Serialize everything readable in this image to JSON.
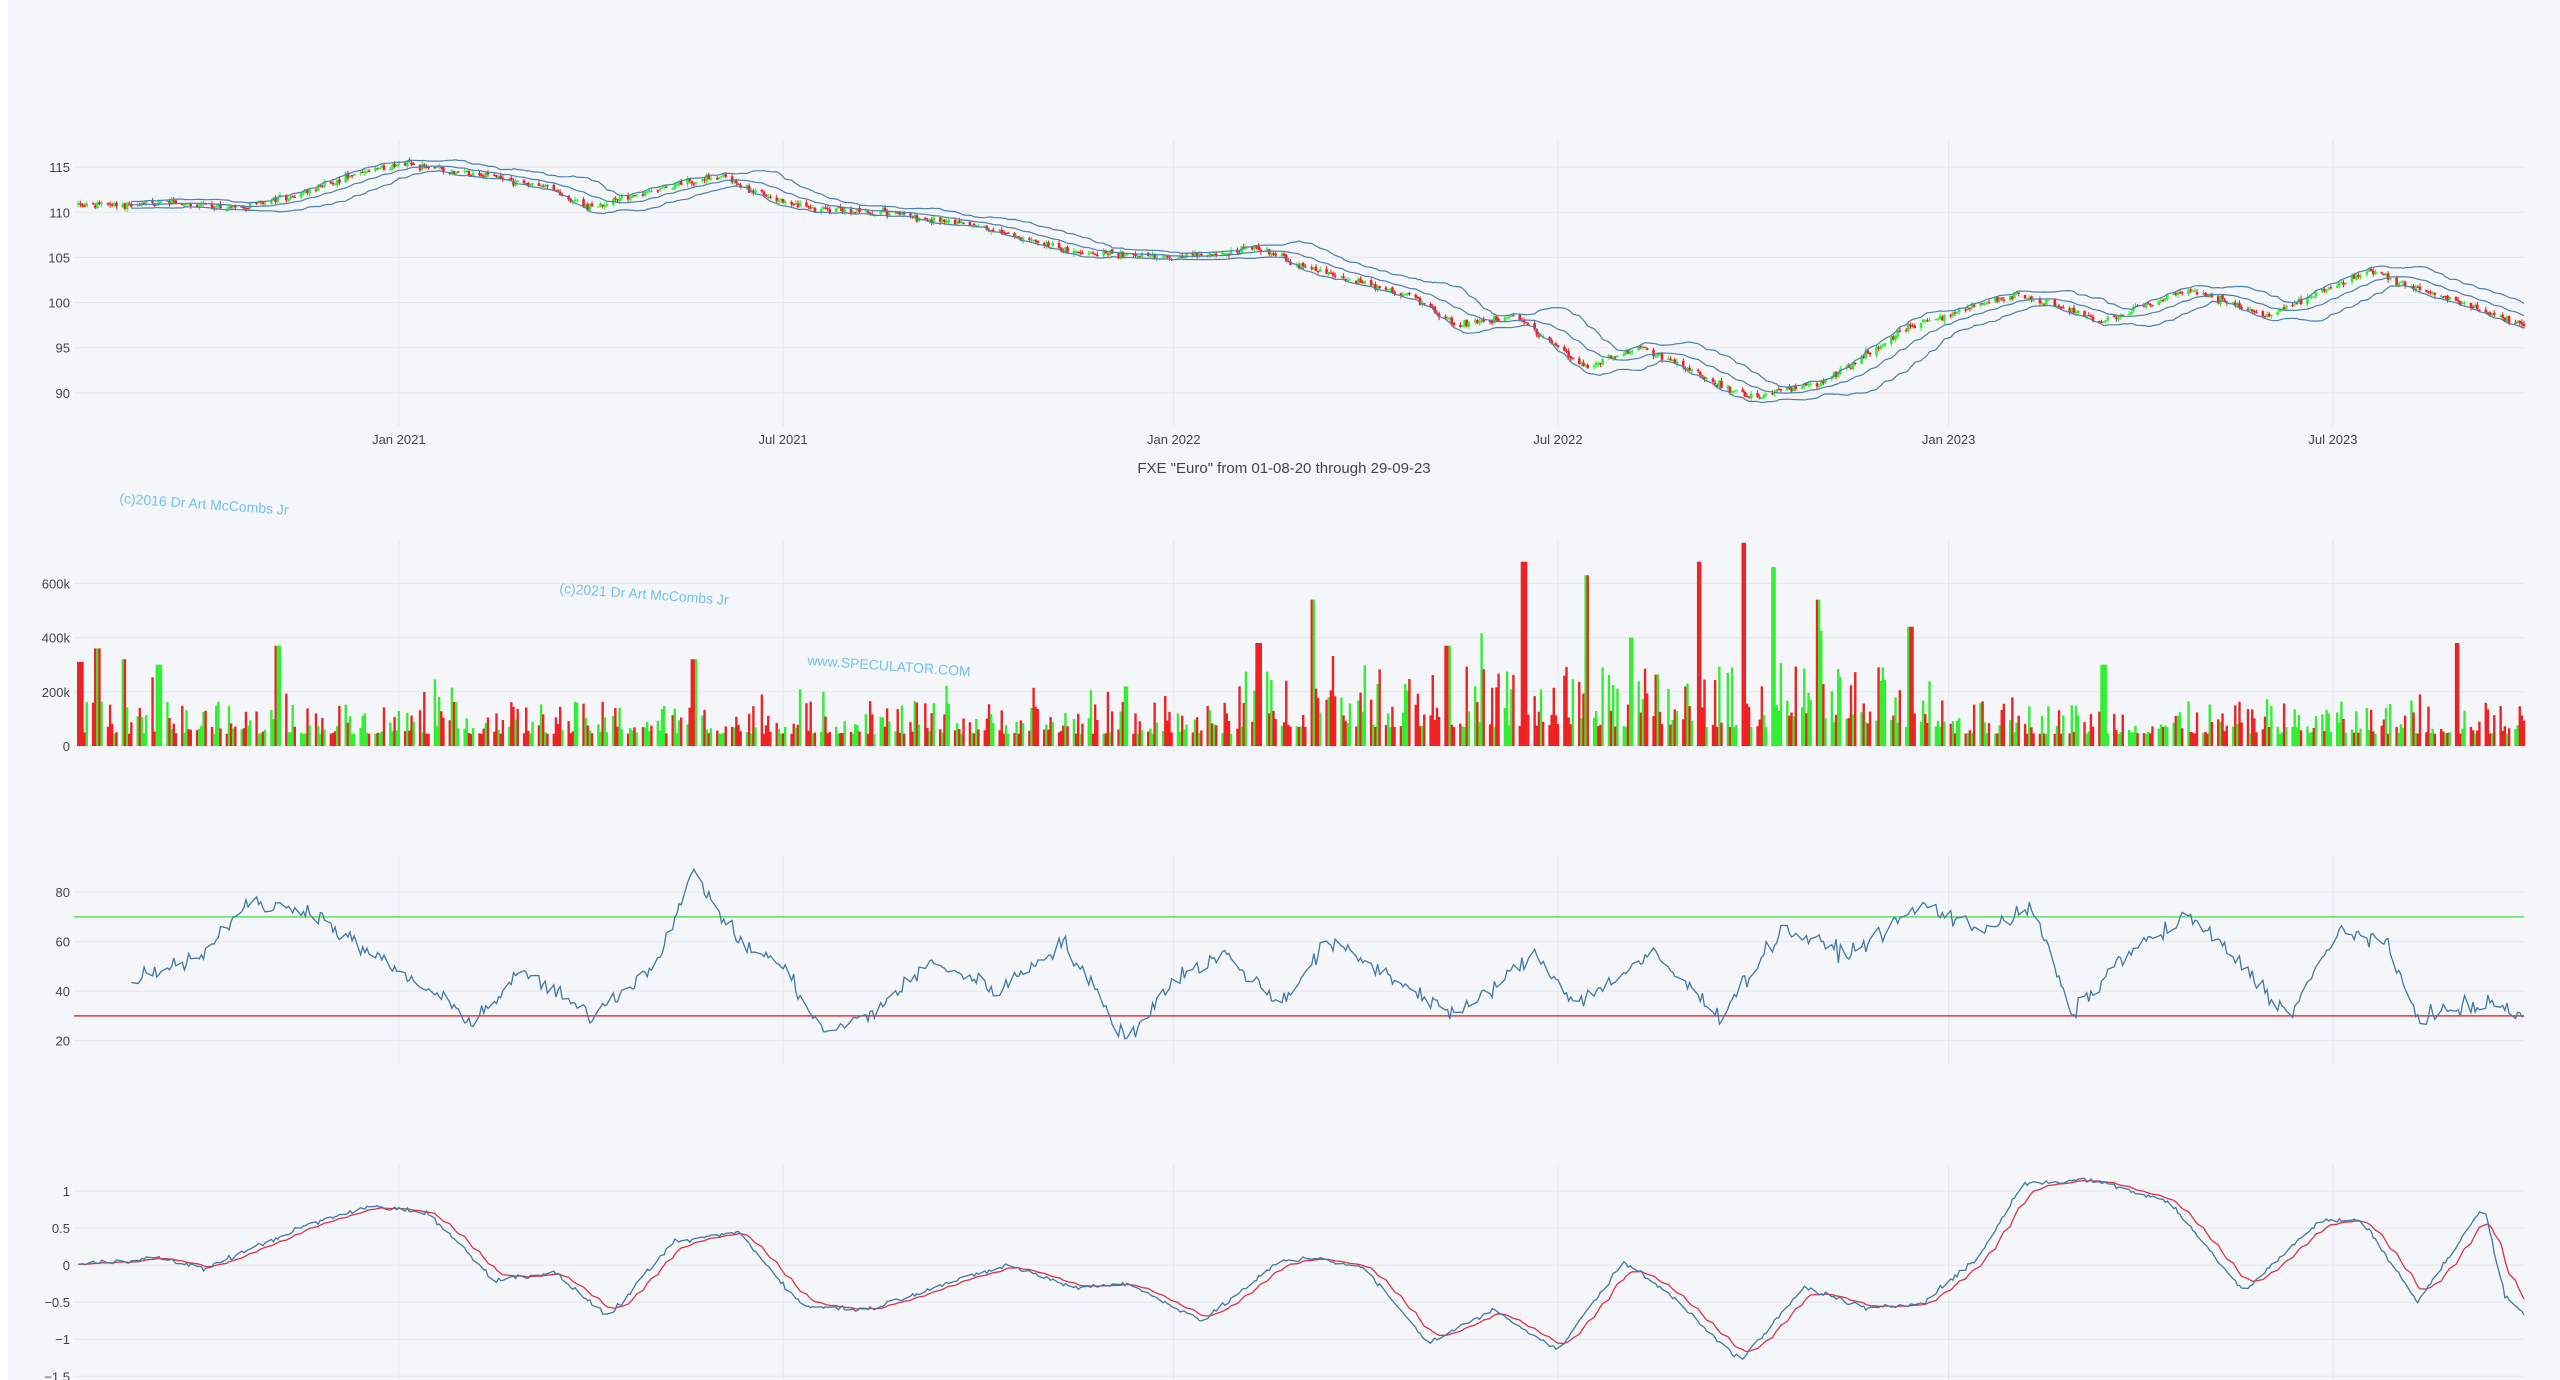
{
  "title": "FXE \"Euro\" from 01-08-20 through 29-09-23",
  "watermarks": [
    "(c)2016 Dr Art McCombs Jr",
    "(c)2021 Dr Art McCombs Jr",
    "www.SPECULATOR.COM"
  ],
  "x_ticks": [
    "Jan 2021",
    "Jul 2021",
    "Jan 2022",
    "Jul 2022",
    "Jan 2023",
    "Jul 2023"
  ],
  "colors": {
    "up": "#33ee33",
    "down": "#ee2222",
    "band": "#4b7faf",
    "rsi_line": "#3f78a8",
    "overbought": "#66dd66",
    "oversold": "#ee3333",
    "macd": "#3f78a8",
    "signal": "#dd3344",
    "grid": "#e2e6ee",
    "axis_text": "#444444"
  },
  "chart_data": [
    {
      "type": "candlestick",
      "name": "price",
      "x_range": [
        "2020-08-01",
        "2023-09-29"
      ],
      "ylim": [
        87,
        118
      ],
      "y_ticks": [
        "90",
        "95",
        "100",
        "105",
        "110",
        "115"
      ],
      "overlays": [
        "upper Bollinger band",
        "middle band",
        "lower Bollinger band"
      ],
      "keypoints": [
        [
          "2020-08-03",
          110.8
        ],
        [
          "2020-09-15",
          111.0
        ],
        [
          "2020-10-20",
          110.5
        ],
        [
          "2020-11-15",
          112.0
        ],
        [
          "2020-12-15",
          114.5
        ],
        [
          "2021-01-05",
          115.5
        ],
        [
          "2021-02-10",
          114.0
        ],
        [
          "2021-03-10",
          113.0
        ],
        [
          "2021-03-31",
          110.5
        ],
        [
          "2021-05-10",
          113.0
        ],
        [
          "2021-06-01",
          114.0
        ],
        [
          "2021-06-20",
          112.0
        ],
        [
          "2021-07-10",
          110.5
        ],
        [
          "2021-08-20",
          109.8
        ],
        [
          "2021-10-01",
          108.5
        ],
        [
          "2021-11-15",
          105.5
        ],
        [
          "2021-12-31",
          105.0
        ],
        [
          "2022-02-10",
          106.0
        ],
        [
          "2022-03-10",
          103.5
        ],
        [
          "2022-04-20",
          101.0
        ],
        [
          "2022-05-15",
          97.5
        ],
        [
          "2022-06-10",
          98.5
        ],
        [
          "2022-07-14",
          93.0
        ],
        [
          "2022-08-10",
          95.0
        ],
        [
          "2022-09-28",
          89.5
        ],
        [
          "2022-11-01",
          91.0
        ],
        [
          "2022-12-15",
          97.5
        ],
        [
          "2023-02-02",
          101.0
        ],
        [
          "2023-03-15",
          98.0
        ],
        [
          "2023-04-25",
          101.5
        ],
        [
          "2023-05-31",
          98.5
        ],
        [
          "2023-07-18",
          103.5
        ],
        [
          "2023-09-29",
          97.5
        ]
      ]
    },
    {
      "type": "bar",
      "name": "volume",
      "ylim": [
        0,
        760000
      ],
      "y_ticks": [
        "0",
        "200k",
        "400k",
        "600k"
      ],
      "spikes": [
        [
          "2020-08-04",
          310000
        ],
        [
          "2020-08-12",
          360000
        ],
        [
          "2020-08-24",
          320000
        ],
        [
          "2020-09-10",
          300000
        ],
        [
          "2020-11-05",
          370000
        ],
        [
          "2021-05-20",
          320000
        ],
        [
          "2021-12-10",
          220000
        ],
        [
          "2022-02-10",
          380000
        ],
        [
          "2022-03-07",
          540000
        ],
        [
          "2022-05-10",
          370000
        ],
        [
          "2022-06-15",
          680000
        ],
        [
          "2022-07-15",
          630000
        ],
        [
          "2022-08-05",
          400000
        ],
        [
          "2022-09-05",
          680000
        ],
        [
          "2022-09-26",
          750000
        ],
        [
          "2022-10-10",
          660000
        ],
        [
          "2022-10-31",
          540000
        ],
        [
          "2022-12-14",
          440000
        ],
        [
          "2023-03-15",
          300000
        ],
        [
          "2023-08-28",
          380000
        ]
      ]
    },
    {
      "type": "line",
      "name": "RSI",
      "ylim": [
        13,
        95
      ],
      "y_ticks": [
        "20",
        "40",
        "60",
        "80"
      ],
      "levels": {
        "overbought": 70,
        "oversold": 30
      },
      "keypoints": [
        [
          "2020-08-28",
          45
        ],
        [
          "2020-10-01",
          55
        ],
        [
          "2020-10-20",
          75
        ],
        [
          "2020-11-20",
          73
        ],
        [
          "2020-12-10",
          60
        ],
        [
          "2021-01-15",
          40
        ],
        [
          "2021-02-05",
          28
        ],
        [
          "2021-03-01",
          48
        ],
        [
          "2021-04-01",
          30
        ],
        [
          "2021-05-01",
          50
        ],
        [
          "2021-05-20",
          88
        ],
        [
          "2021-06-10",
          60
        ],
        [
          "2021-07-01",
          50
        ],
        [
          "2021-07-20",
          23
        ],
        [
          "2021-08-10",
          30
        ],
        [
          "2021-09-10",
          52
        ],
        [
          "2021-10-10",
          40
        ],
        [
          "2021-11-10",
          60
        ],
        [
          "2021-12-10",
          20
        ],
        [
          "2022-01-01",
          45
        ],
        [
          "2022-01-25",
          55
        ],
        [
          "2022-02-20",
          35
        ],
        [
          "2022-03-15",
          60
        ],
        [
          "2022-04-15",
          45
        ],
        [
          "2022-05-15",
          30
        ],
        [
          "2022-06-20",
          55
        ],
        [
          "2022-07-10",
          35
        ],
        [
          "2022-08-15",
          55
        ],
        [
          "2022-09-15",
          30
        ],
        [
          "2022-10-15",
          65
        ],
        [
          "2022-11-15",
          55
        ],
        [
          "2022-12-20",
          75
        ],
        [
          "2023-01-15",
          65
        ],
        [
          "2023-02-10",
          73
        ],
        [
          "2023-02-28",
          30
        ],
        [
          "2023-03-25",
          55
        ],
        [
          "2023-04-25",
          70
        ],
        [
          "2023-05-20",
          50
        ],
        [
          "2023-06-10",
          30
        ],
        [
          "2023-07-05",
          65
        ],
        [
          "2023-07-25",
          60
        ],
        [
          "2023-08-10",
          30
        ],
        [
          "2023-09-15",
          35
        ],
        [
          "2023-09-29",
          30
        ]
      ]
    },
    {
      "type": "line",
      "name": "MACD",
      "ylim": [
        -1.55,
        1.35
      ],
      "y_ticks": [
        "−1.5",
        "−1",
        "−0.5",
        "0",
        "0.5",
        "1"
      ],
      "series": [
        "MACD",
        "signal"
      ],
      "keypoints": [
        [
          "2020-08-01",
          0.0
        ],
        [
          "2020-09-10",
          0.1
        ],
        [
          "2020-10-01",
          -0.05
        ],
        [
          "2020-11-20",
          0.55
        ],
        [
          "2020-12-20",
          0.8
        ],
        [
          "2021-01-15",
          0.7
        ],
        [
          "2021-02-15",
          -0.2
        ],
        [
          "2021-03-15",
          -0.1
        ],
        [
          "2021-04-10",
          -0.7
        ],
        [
          "2021-05-10",
          0.3
        ],
        [
          "2021-06-10",
          0.45
        ],
        [
          "2021-07-10",
          -0.55
        ],
        [
          "2021-08-10",
          -0.6
        ],
        [
          "2021-09-10",
          -0.3
        ],
        [
          "2021-10-15",
          0.0
        ],
        [
          "2021-11-15",
          -0.3
        ],
        [
          "2021-12-10",
          -0.25
        ],
        [
          "2022-01-15",
          -0.75
        ],
        [
          "2022-02-20",
          0.05
        ],
        [
          "2022-03-10",
          0.1
        ],
        [
          "2022-04-01",
          -0.05
        ],
        [
          "2022-05-01",
          -1.05
        ],
        [
          "2022-06-01",
          -0.6
        ],
        [
          "2022-07-01",
          -1.15
        ],
        [
          "2022-08-01",
          0.05
        ],
        [
          "2022-08-25",
          -0.45
        ],
        [
          "2022-09-25",
          -1.3
        ],
        [
          "2022-10-25",
          -0.3
        ],
        [
          "2022-11-25",
          -0.6
        ],
        [
          "2022-12-20",
          -0.5
        ],
        [
          "2023-01-15",
          0.1
        ],
        [
          "2023-02-05",
          1.1
        ],
        [
          "2023-03-10",
          1.15
        ],
        [
          "2023-04-15",
          0.85
        ],
        [
          "2023-05-20",
          -0.35
        ],
        [
          "2023-06-25",
          0.6
        ],
        [
          "2023-07-15",
          0.6
        ],
        [
          "2023-08-10",
          -0.5
        ],
        [
          "2023-08-28",
          0.25
        ],
        [
          "2023-09-10",
          0.8
        ],
        [
          "2023-09-20",
          -0.4
        ],
        [
          "2023-09-29",
          -0.65
        ]
      ]
    }
  ]
}
